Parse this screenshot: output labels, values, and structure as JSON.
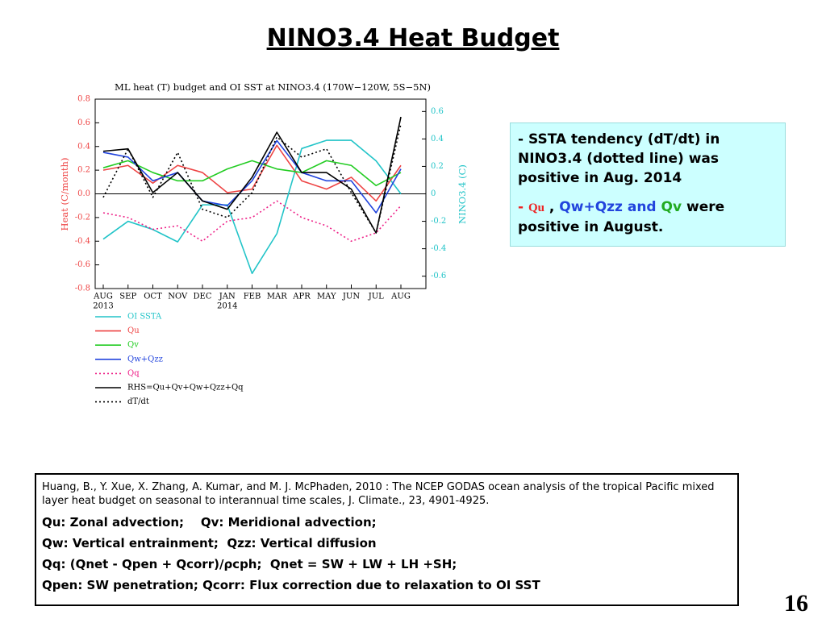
{
  "title": "NINO3.4 Heat Budget",
  "chart_data": {
    "type": "line",
    "title": "ML heat (T) budget and OI SST at NINO3.4 (170W−120W, 5S−5N)",
    "y_label": "Heat (C/month)",
    "y2_label": "NINO3.4 (C)",
    "categories": [
      "AUG",
      "SEP",
      "OCT",
      "NOV",
      "DEC",
      "JAN",
      "FEB",
      "MAR",
      "APR",
      "MAY",
      "JUN",
      "JUL",
      "AUG"
    ],
    "category_groups": [
      "2013",
      null,
      null,
      null,
      null,
      "2014",
      null,
      null,
      null,
      null,
      null,
      null,
      null
    ],
    "ylim": [
      -0.8,
      0.8
    ],
    "yticks": [
      0.8,
      0.6,
      0.4,
      0.2,
      {
        "value": 0,
        "label": "0.0"
      },
      -0.2,
      -0.4,
      -0.6,
      -0.8
    ],
    "y2lim": [
      -0.69,
      0.69
    ],
    "y2ticks": [
      0.6,
      0.4,
      0.2,
      0,
      -0.2,
      -0.4,
      -0.6
    ],
    "series": [
      {
        "name": "OI SSTA",
        "color": "#22c4c8",
        "line_style": "solid",
        "axis": "y2",
        "values": [
          -0.33,
          -0.2,
          -0.26,
          -0.35,
          -0.08,
          -0.08,
          -0.58,
          -0.29,
          0.33,
          0.39,
          0.39,
          0.24,
          0
        ]
      },
      {
        "name": "Qu",
        "color": "#ee4444",
        "line_style": "solid",
        "values": [
          0.2,
          0.24,
          0.09,
          0.24,
          0.18,
          0.01,
          0.04,
          0.41,
          0.11,
          0.04,
          0.14,
          -0.06,
          0.24
        ]
      },
      {
        "name": "Qv",
        "color": "#22cc22",
        "line_style": "solid",
        "values": [
          0.22,
          0.28,
          0.18,
          0.11,
          0.11,
          0.21,
          0.28,
          0.21,
          0.18,
          0.28,
          0.24,
          0.07,
          0.18
        ]
      },
      {
        "name": "Qw+Qzz",
        "color": "#2244dd",
        "line_style": "solid",
        "values": [
          0.35,
          0.31,
          0.11,
          0.18,
          -0.06,
          -0.1,
          0.11,
          0.45,
          0.18,
          0.11,
          0.11,
          -0.16,
          0.21
        ]
      },
      {
        "name": "Qq",
        "color": "#ee2288",
        "line_style": "dotted",
        "values": [
          -0.16,
          -0.2,
          -0.3,
          -0.27,
          -0.4,
          -0.23,
          -0.2,
          -0.06,
          -0.2,
          -0.27,
          -0.4,
          -0.33,
          -0.1
        ]
      },
      {
        "name": "RHS=Qu+Qv+Qw+Qzz+Qq",
        "color": "#000000",
        "line_style": "solid",
        "values": [
          0.36,
          0.38,
          0.01,
          0.18,
          -0.06,
          -0.13,
          0.14,
          0.52,
          0.18,
          0.18,
          0.04,
          -0.33,
          0.65
        ]
      },
      {
        "name": "dT/dt",
        "color": "#000000",
        "line_style": "dotted",
        "values": [
          -0.03,
          0.38,
          -0.03,
          0.35,
          -0.13,
          -0.2,
          0.01,
          0.48,
          0.31,
          0.38,
          0.01,
          -0.33,
          0.59
        ]
      }
    ]
  },
  "note": {
    "items": [
      [
        {
          "text": "- "
        },
        {
          "text": "SSTA tendency (dT/dt) in NINO3.4 (dotted line) was positive in Aug. 2014"
        }
      ],
      [
        {
          "text": "- ",
          "color": "#ee2222"
        },
        {
          "text": "Qu",
          "color": "#ee2222",
          "font": "serif"
        },
        {
          "text": " , "
        },
        {
          "text": "Qw+Qzz and ",
          "color": "#2244dd"
        },
        {
          "text": "Qv",
          "color": "#22aa22"
        },
        {
          "text": " were positive in August."
        }
      ]
    ]
  },
  "reference": {
    "citation": "Huang, B., Y. Xue, X. Zhang, A. Kumar, and M. J. McPhaden, 2010 : The NCEP GODAS ocean analysis of the tropical Pacific mixed layer heat budget on seasonal to interannual time scales,  J. Climate., 23, 4901-4925.",
    "lines": [
      "Qu: Zonal advection;    Qv: Meridional advection;",
      "Qw: Vertical entrainment;  Qzz: Vertical diffusion",
      "Qq: (Qnet - Qpen + Qcorr)/ρcph;  Qnet = SW + LW + LH +SH;",
      "Qpen: SW penetration; Qcorr: Flux correction due to relaxation to OI SST"
    ]
  },
  "page_number": "16"
}
